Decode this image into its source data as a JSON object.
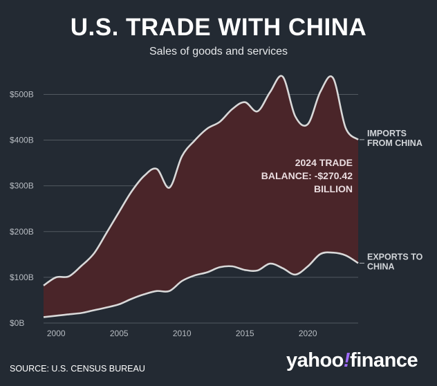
{
  "header": {
    "title": "U.S. TRADE WITH CHINA",
    "subtitle": "Sales of goods and services"
  },
  "colors": {
    "background": "#232a33",
    "area_fill": "#4a2529",
    "line": "#d9d9d9",
    "grid": "#525960"
  },
  "chart_data": {
    "type": "area",
    "y_ticks": [
      {
        "value": 0,
        "label": "$0B"
      },
      {
        "value": 100,
        "label": "$100B"
      },
      {
        "value": 200,
        "label": "$200B"
      },
      {
        "value": 300,
        "label": "$300B"
      },
      {
        "value": 400,
        "label": "$400B"
      },
      {
        "value": 500,
        "label": "$500B"
      }
    ],
    "x_ticks": [
      {
        "value": 2000,
        "label": "2000"
      },
      {
        "value": 2005,
        "label": "2005"
      },
      {
        "value": 2010,
        "label": "2010"
      },
      {
        "value": 2015,
        "label": "2015"
      },
      {
        "value": 2020,
        "label": "2020"
      }
    ],
    "xlim": [
      1999,
      2024
    ],
    "ylim": [
      0,
      540
    ],
    "grid": true,
    "x": [
      1999,
      2000,
      2001,
      2002,
      2003,
      2004,
      2005,
      2006,
      2007,
      2008,
      2009,
      2010,
      2011,
      2012,
      2013,
      2014,
      2015,
      2016,
      2017,
      2018,
      2019,
      2020,
      2021,
      2022,
      2023,
      2024
    ],
    "series": [
      {
        "name": "IMPORTS FROM CHINA",
        "label_lines": [
          "IMPORTS",
          "FROM CHINA"
        ],
        "values": [
          82,
          100,
          102,
          125,
          152,
          197,
          243,
          288,
          322,
          337,
          296,
          365,
          399,
          425,
          440,
          468,
          483,
          463,
          505,
          539,
          452,
          435,
          506,
          536,
          427,
          401
        ]
      },
      {
        "name": "EXPORTS TO CHINA",
        "label_lines": [
          "EXPORTS TO",
          "CHINA"
        ],
        "values": [
          13,
          16,
          19,
          22,
          28,
          34,
          41,
          53,
          63,
          70,
          70,
          92,
          104,
          111,
          122,
          124,
          116,
          115,
          130,
          120,
          106,
          124,
          151,
          154,
          148,
          131
        ]
      }
    ],
    "annotations": [
      {
        "lines": [
          "2024 TRADE",
          "BALANCE: -$270.42",
          "BILLION"
        ]
      }
    ]
  },
  "footer": {
    "source": "SOURCE: U.S. CENSUS BUREAU",
    "logo": {
      "part1": "yahoo",
      "part2": "!",
      "part3": "finance"
    }
  }
}
